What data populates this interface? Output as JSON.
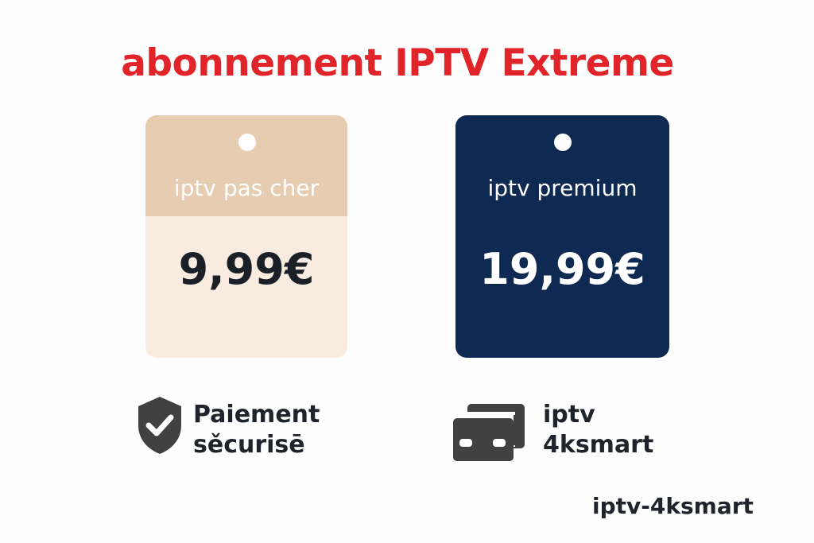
{
  "title": "abonnement IPTV Extreme",
  "colors": {
    "title": "#e0242a",
    "tag_cheap_top": "#e6cdb2",
    "tag_cheap_bottom": "#f8ece0",
    "tag_premium": "#0e2a52",
    "icon": "#414141"
  },
  "plans": [
    {
      "label": "iptv pas cher",
      "price": "9,99€"
    },
    {
      "label": "iptv premium",
      "price": "19,99€"
    }
  ],
  "features": [
    {
      "icon": "shield-check-icon",
      "line1": "Paiement",
      "line2": "sěcurisē"
    },
    {
      "icon": "cards-icon",
      "line1": "iptv",
      "line2": "4ksmart"
    }
  ],
  "footer": "iptv-4ksmart"
}
